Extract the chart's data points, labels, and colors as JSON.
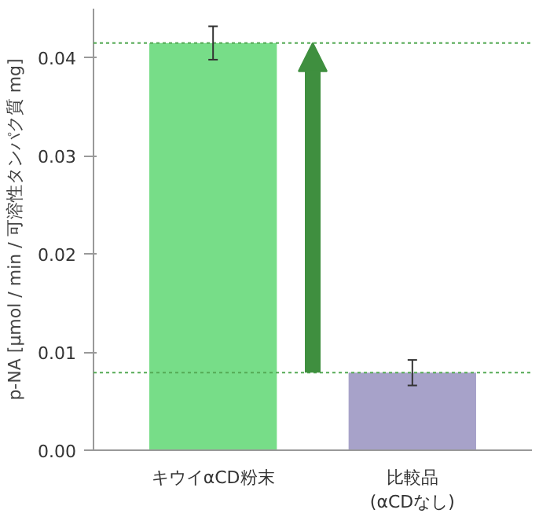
{
  "chart_data": {
    "type": "bar",
    "ylabel": "p-NA [µmol / min / 可溶性タンパク質 mg]",
    "categories": [
      "キウイαCD粉末",
      "比較品\n(αCDなし)"
    ],
    "values": [
      0.0415,
      0.0079
    ],
    "errors": [
      0.0017,
      0.0013
    ],
    "colors": [
      "#77dd88",
      "#a7a2c9"
    ],
    "ylim": [
      0,
      0.045
    ],
    "yticks": [
      {
        "value": 0,
        "label": "0.00"
      },
      {
        "value": 0.01,
        "label": "0.01"
      },
      {
        "value": 0.02,
        "label": "0.02"
      },
      {
        "value": 0.03,
        "label": "0.03"
      },
      {
        "value": 0.04,
        "label": "0.04"
      }
    ],
    "ref_lines": [
      {
        "axis": "y",
        "value": 0.0415,
        "color": "#55aa55",
        "line_style": "dotted"
      },
      {
        "axis": "y",
        "value": 0.0079,
        "color": "#55aa55",
        "line_style": "dotted"
      }
    ],
    "grid": false
  }
}
